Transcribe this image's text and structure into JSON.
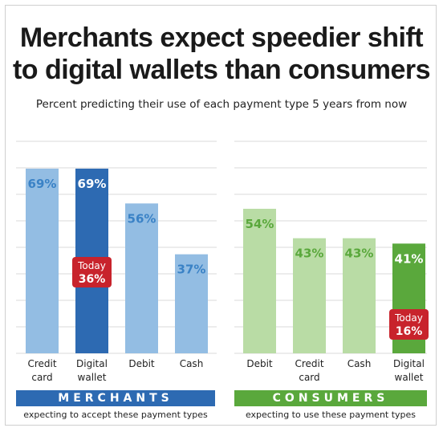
{
  "title_line1": "Merchants expect speedier shift",
  "title_line2": "to digital wallets than consumers",
  "subtitle": "Percent predicting their use of each payment type 5 years from now",
  "colors": {
    "merchant_light": "#93bde3",
    "merchant_dark": "#2d6ab2",
    "merchant_text": "#3a82c6",
    "consumer_light": "#b9dca5",
    "consumer_dark": "#5aa83c",
    "consumer_text": "#5aa83c",
    "today_badge": "#c8232c"
  },
  "merchants": {
    "banner": "MERCHANTS",
    "caption": "expecting to accept these payment types"
  },
  "consumers": {
    "banner": "CONSUMERS",
    "caption": "expecting to use these payment types"
  },
  "chart_data": [
    {
      "type": "bar",
      "group": "merchants",
      "categories": [
        [
          "Credit",
          "card"
        ],
        [
          "Digital",
          "wallet"
        ],
        [
          "Debit"
        ],
        [
          "Cash"
        ]
      ],
      "values": [
        69,
        69,
        56,
        37
      ],
      "labels": [
        "69%",
        "69%",
        "56%",
        "37%"
      ],
      "highlight_index": 1,
      "annotation": {
        "index": 1,
        "line1": "Today",
        "line2": "36%",
        "value": 36
      },
      "ylim": [
        0,
        80
      ],
      "grid": true
    },
    {
      "type": "bar",
      "group": "consumers",
      "categories": [
        [
          "Debit"
        ],
        [
          "Credit",
          "card"
        ],
        [
          "Cash"
        ],
        [
          "Digital",
          "wallet"
        ]
      ],
      "values": [
        54,
        43,
        43,
        41
      ],
      "labels": [
        "54%",
        "43%",
        "43%",
        "41%"
      ],
      "highlight_index": 3,
      "annotation": {
        "index": 3,
        "line1": "Today",
        "line2": "16%",
        "value": 16
      },
      "ylim": [
        0,
        80
      ],
      "grid": true
    }
  ]
}
